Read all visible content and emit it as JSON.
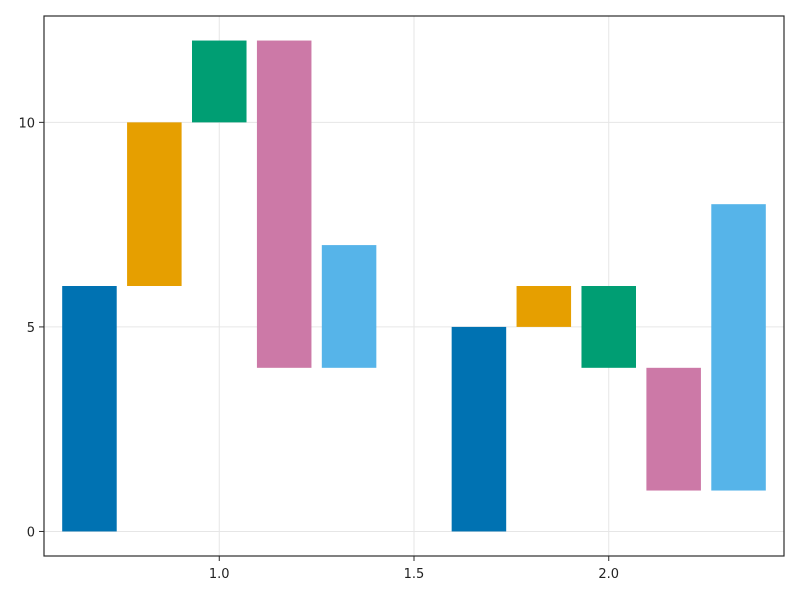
{
  "chart_data": {
    "type": "bar",
    "subtype": "floating-bar",
    "title": "",
    "xlabel": "",
    "ylabel": "",
    "xlim": [
      0.55,
      2.45
    ],
    "ylim": [
      -0.6,
      12.6
    ],
    "grid": true,
    "x_ticks": [
      1.0,
      1.5,
      2.0
    ],
    "x_tick_labels": [
      "1.0",
      "1.5",
      "2.0"
    ],
    "y_ticks": [
      0,
      5,
      10
    ],
    "y_tick_labels": [
      "0",
      "5",
      "10"
    ],
    "bar_width": 0.14,
    "bars": [
      {
        "x": 0.6667,
        "bottom": 0,
        "top": 6,
        "color": "#0072B2"
      },
      {
        "x": 0.8333,
        "bottom": 6,
        "top": 10,
        "color": "#E69F00"
      },
      {
        "x": 1.0,
        "bottom": 10,
        "top": 12,
        "color": "#009E73"
      },
      {
        "x": 1.1667,
        "bottom": 4,
        "top": 12,
        "color": "#CC79A7"
      },
      {
        "x": 1.3333,
        "bottom": 4,
        "top": 7,
        "color": "#56B4E9"
      },
      {
        "x": 1.6667,
        "bottom": 0,
        "top": 5,
        "color": "#0072B2"
      },
      {
        "x": 1.8333,
        "bottom": 5,
        "top": 6,
        "color": "#E69F00"
      },
      {
        "x": 2.0,
        "bottom": 4,
        "top": 6,
        "color": "#009E73"
      },
      {
        "x": 2.1667,
        "bottom": 1,
        "top": 4,
        "color": "#CC79A7"
      },
      {
        "x": 2.3333,
        "bottom": 1,
        "top": 8,
        "color": "#56B4E9"
      }
    ]
  }
}
